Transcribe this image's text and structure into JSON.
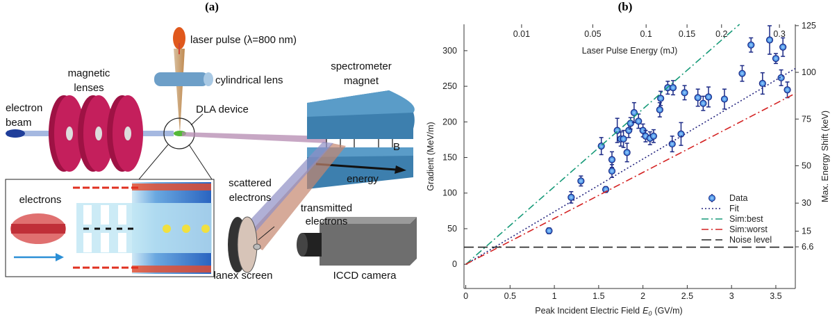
{
  "panel_a": {
    "label": "(a)",
    "laser_pulse": "laser pulse (λ=800 nm)",
    "cylindrical_lens": "cylindrical lens",
    "magnetic_lenses": [
      "magnetic",
      "lenses"
    ],
    "electron_beam": [
      "electron",
      "beam"
    ],
    "dla_device": "DLA device",
    "spectrometer_magnet": [
      "spectrometer",
      "magnet"
    ],
    "field": "B",
    "energy": "energy",
    "electrons": "electrons",
    "scattered_electrons": [
      "scattered",
      "electrons"
    ],
    "transmitted_electrons": [
      "transmitted",
      "electrons"
    ],
    "lanex_screen": "lanex screen",
    "iccd_camera": "ICCD camera"
  },
  "chart_data": {
    "type": "scatter",
    "panel_label": "(b)",
    "xlabel": [
      "Peak Incident Electric Field",
      "E",
      "0",
      "(GV/m)"
    ],
    "ylabel": "Gradient (MeV/m)",
    "y2label": "Max. Energy Shift (keV)",
    "x2label": "Laser Pulse Energy (mJ)",
    "xlim": [
      -0.02,
      3.72
    ],
    "xticks": [
      0,
      0.5,
      1,
      1.5,
      2,
      2.5,
      3,
      3.5
    ],
    "ylim": [
      -34,
      337
    ],
    "yticks": [
      0,
      50,
      100,
      150,
      200,
      250,
      300
    ],
    "y2lim": [
      -15.7,
      125.7
    ],
    "y2ticks": [
      6.6,
      15,
      30,
      50,
      75,
      100,
      125
    ],
    "x2scale": "sqrt",
    "x2lim": [
      0,
      0.331
    ],
    "x2ticks": [
      0.01,
      0.05,
      0.1,
      0.15,
      0.2,
      0.3
    ],
    "grid": false,
    "legend": "lower right",
    "series": [
      {
        "name": "Data",
        "kind": "points",
        "color": "#3a8fe6",
        "edge": "#1c2a86",
        "x": [
          0.94,
          1.19,
          1.3,
          1.58,
          1.53,
          1.65,
          1.65,
          1.71,
          1.75,
          1.78,
          1.82,
          1.84,
          1.86,
          1.9,
          1.95,
          2.0,
          2.03,
          2.08,
          2.12,
          2.19,
          2.2,
          2.28,
          2.34,
          2.33,
          2.43,
          2.47,
          2.62,
          2.68,
          2.74,
          2.92,
          3.12,
          3.22,
          3.35,
          3.43,
          3.5,
          3.56,
          3.58,
          3.63
        ],
        "values": [
          47,
          94,
          117,
          105,
          166,
          131,
          147,
          188,
          176,
          176,
          157,
          188,
          198,
          213,
          201,
          188,
          180,
          177,
          180,
          217,
          233,
          248,
          248,
          169,
          183,
          241,
          234,
          226,
          235,
          232,
          268,
          308,
          254,
          315,
          289,
          262,
          305,
          245
        ],
        "errors": [
          4,
          8,
          7,
          4,
          12,
          9,
          11,
          17,
          10,
          12,
          13,
          10,
          8,
          14,
          10,
          9,
          8,
          9,
          9,
          10,
          10,
          9,
          10,
          11,
          16,
          10,
          12,
          10,
          14,
          14,
          11,
          10,
          15,
          20,
          7,
          11,
          13,
          11
        ]
      },
      {
        "name": "Fit",
        "kind": "line",
        "dash": "dotted",
        "color": "#23237e",
        "x": [
          0,
          3.72
        ],
        "values": [
          0,
          275
        ]
      },
      {
        "name": "Sim:best",
        "kind": "line",
        "dash": "dashdot",
        "color": "#169a78",
        "x": [
          0,
          3.09
        ],
        "values": [
          0,
          337
        ]
      },
      {
        "name": "Sim:worst",
        "kind": "line",
        "dash": "dashdot",
        "color": "#d42222",
        "x": [
          0,
          3.72
        ],
        "values": [
          0,
          240
        ]
      },
      {
        "name": "Noise level",
        "kind": "line",
        "dash": "longdash",
        "color": "#222222",
        "x": [
          -0.02,
          3.72
        ],
        "values": [
          24,
          24
        ]
      }
    ]
  }
}
